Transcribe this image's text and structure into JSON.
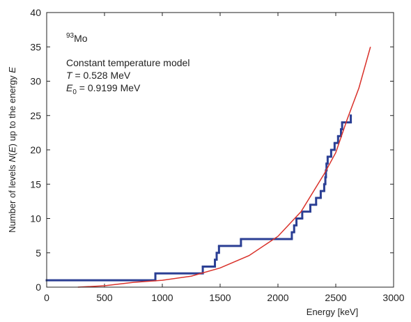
{
  "chart_data": {
    "type": "line",
    "xlabel": "Energy [keV]",
    "ylabel": [
      {
        "text": "Number of levels ",
        "italic": false
      },
      {
        "text": "N",
        "italic": true
      },
      {
        "text": "(",
        "italic": false
      },
      {
        "text": "E",
        "italic": true
      },
      {
        "text": ") up to the energy ",
        "italic": false
      },
      {
        "text": "E",
        "italic": true
      }
    ],
    "annotations": [
      {
        "sup": "93",
        "text": "Mo"
      },
      {
        "text": "Constant temperature model"
      },
      {
        "symbol": "T",
        "text": " = 0.528 MeV"
      },
      {
        "symbol": "E",
        "sub": "0",
        "text": " = 0.9199 MeV"
      }
    ],
    "xlim": [
      0,
      3000
    ],
    "ylim": [
      0,
      40
    ],
    "xticks": [
      0,
      500,
      1000,
      1500,
      2000,
      2500,
      3000
    ],
    "yticks": [
      0,
      5,
      10,
      15,
      20,
      25,
      30,
      35,
      40
    ],
    "grid": false,
    "series": [
      {
        "color": "#2b3f94",
        "step": "post",
        "x": [
          0,
          940,
          1350,
          1455,
          1470,
          1490,
          1680,
          2120,
          2140,
          2160,
          2210,
          2280,
          2330,
          2370,
          2400,
          2410,
          2415,
          2420,
          2430,
          2460,
          2490,
          2520,
          2545,
          2555,
          2630
        ],
        "values": [
          1,
          2,
          3,
          4,
          5,
          6,
          7,
          8,
          9,
          10,
          11,
          12,
          13,
          14,
          15,
          16,
          17,
          18,
          19,
          20,
          21,
          22,
          23,
          24,
          25
        ]
      },
      {
        "color": "#d9312a",
        "x": [
          270,
          500,
          750,
          1000,
          1250,
          1500,
          1750,
          2000,
          2200,
          2400,
          2500,
          2600,
          2700,
          2800
        ],
        "values": [
          0,
          0.2,
          0.7,
          1.0,
          1.6,
          2.8,
          4.6,
          7.4,
          11,
          16.5,
          19.6,
          24.5,
          29,
          35
        ]
      }
    ]
  }
}
